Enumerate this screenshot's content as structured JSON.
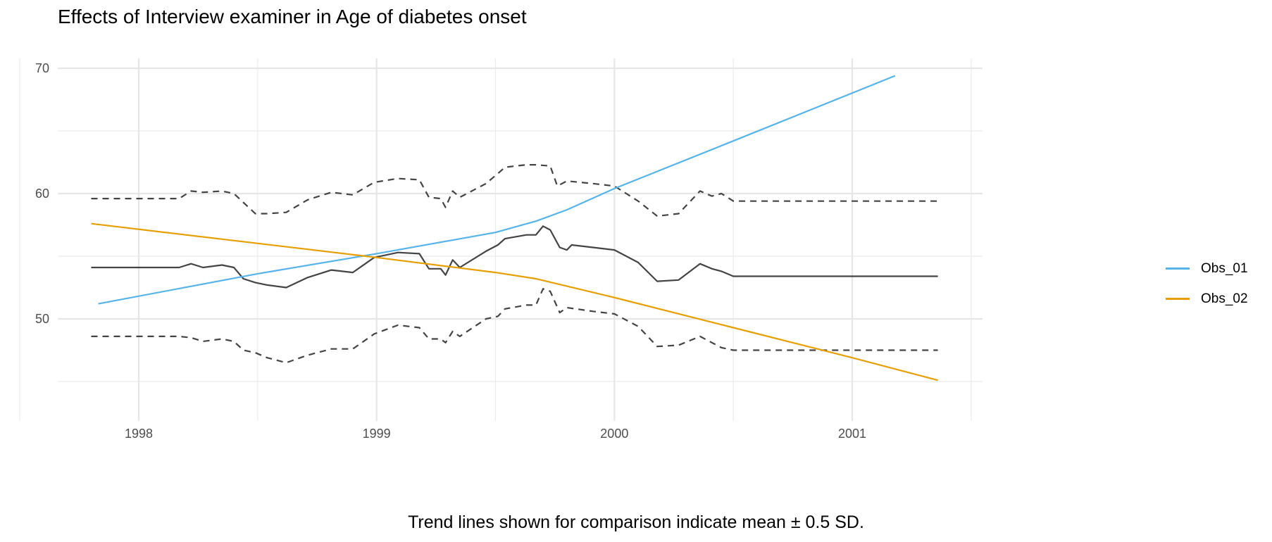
{
  "chart_data": {
    "type": "line",
    "title": "Effects of Interview examiner in Age of diabetes onset",
    "caption": "Trend lines shown for comparison indicate mean ± 0.5 SD.",
    "xlabel": "",
    "ylabel": "",
    "xlim": [
      1997.62,
      2001.55
    ],
    "ylim": [
      42.6,
      71.1
    ],
    "x_ticks": [
      1998,
      1999,
      2000,
      2001
    ],
    "x_tick_labels": [
      "1998",
      "1999",
      "2000",
      "2001"
    ],
    "y_ticks": [
      50,
      60,
      70
    ],
    "y_tick_labels": [
      "50",
      "60",
      "70"
    ],
    "grid": true,
    "legend_position": "right",
    "legend": [
      {
        "name": "Obs_01",
        "color": "#56B4E9"
      },
      {
        "name": "Obs_02",
        "color": "#E69F00"
      }
    ],
    "series": [
      {
        "name": "Obs_01",
        "color": "#56B4E9",
        "style": "solid",
        "x": [
          1997.83,
          1998.5,
          1999.0,
          1999.5,
          1999.67,
          1999.8,
          2000.0,
          2000.5,
          2001.18
        ],
        "y": [
          51.2,
          53.6,
          55.2,
          56.9,
          57.8,
          58.7,
          60.4,
          64.2,
          69.4
        ]
      },
      {
        "name": "Obs_02",
        "color": "#E69F00",
        "style": "solid",
        "x": [
          1997.8,
          1999.0,
          1999.5,
          1999.67,
          2000.0,
          2000.5,
          2001.0,
          2001.36
        ],
        "y": [
          57.6,
          54.9,
          53.7,
          53.2,
          51.7,
          49.3,
          46.9,
          45.1
        ]
      },
      {
        "name": "mean",
        "color": "#444444",
        "style": "solid",
        "x": [
          1997.8,
          1998.17,
          1998.22,
          1998.27,
          1998.35,
          1998.4,
          1998.44,
          1998.49,
          1998.54,
          1998.62,
          1998.71,
          1998.81,
          1998.9,
          1998.99,
          1999.09,
          1999.18,
          1999.22,
          1999.27,
          1999.29,
          1999.32,
          1999.35,
          1999.46,
          1999.51,
          1999.54,
          1999.63,
          1999.67,
          1999.7,
          1999.73,
          1999.77,
          1999.8,
          1999.82,
          1999.91,
          2000.0,
          2000.1,
          2000.18,
          2000.27,
          2000.36,
          2000.41,
          2000.45,
          2000.5,
          2001.36
        ],
        "y": [
          54.1,
          54.1,
          54.4,
          54.1,
          54.3,
          54.1,
          53.2,
          52.9,
          52.7,
          52.5,
          53.3,
          53.9,
          53.7,
          54.9,
          55.3,
          55.2,
          54.0,
          54.0,
          53.5,
          54.7,
          54.1,
          55.4,
          55.9,
          56.4,
          56.7,
          56.7,
          57.4,
          57.1,
          55.7,
          55.5,
          55.9,
          55.7,
          55.5,
          54.5,
          53.0,
          53.1,
          54.4,
          54.0,
          53.8,
          53.4,
          53.4
        ]
      },
      {
        "name": "mean + 0.5 SD",
        "color": "#444444",
        "style": "dashed",
        "x": [
          1997.8,
          1998.17,
          1998.22,
          1998.27,
          1998.35,
          1998.4,
          1998.49,
          1998.54,
          1998.62,
          1998.71,
          1998.81,
          1998.9,
          1998.99,
          1999.09,
          1999.18,
          1999.22,
          1999.27,
          1999.29,
          1999.32,
          1999.35,
          1999.46,
          1999.51,
          1999.54,
          1999.63,
          1999.67,
          1999.73,
          1999.76,
          1999.8,
          1999.91,
          2000.0,
          2000.1,
          2000.18,
          2000.27,
          2000.36,
          2000.41,
          2000.45,
          2000.5,
          2001.36
        ],
        "y": [
          59.6,
          59.6,
          60.2,
          60.1,
          60.2,
          60.0,
          58.4,
          58.4,
          58.5,
          59.5,
          60.1,
          59.9,
          60.9,
          61.2,
          61.1,
          59.7,
          59.6,
          58.9,
          60.2,
          59.7,
          60.8,
          61.6,
          62.1,
          62.3,
          62.3,
          62.2,
          60.6,
          61.0,
          60.8,
          60.6,
          59.4,
          58.2,
          58.4,
          60.2,
          59.8,
          60.0,
          59.4,
          59.4
        ]
      },
      {
        "name": "mean - 0.5 SD",
        "color": "#444444",
        "style": "dashed",
        "x": [
          1997.8,
          1998.17,
          1998.22,
          1998.27,
          1998.35,
          1998.4,
          1998.44,
          1998.49,
          1998.54,
          1998.62,
          1998.71,
          1998.81,
          1998.9,
          1998.99,
          1999.09,
          1999.18,
          1999.22,
          1999.27,
          1999.29,
          1999.32,
          1999.35,
          1999.46,
          1999.51,
          1999.54,
          1999.63,
          1999.67,
          1999.7,
          1999.73,
          1999.77,
          1999.8,
          1999.91,
          2000.0,
          2000.1,
          2000.18,
          2000.27,
          2000.36,
          2000.41,
          2000.45,
          2000.5,
          2001.36
        ],
        "y": [
          48.6,
          48.6,
          48.5,
          48.2,
          48.4,
          48.2,
          47.5,
          47.3,
          46.9,
          46.5,
          47.1,
          47.6,
          47.6,
          48.8,
          49.5,
          49.3,
          48.4,
          48.4,
          48.1,
          49.0,
          48.6,
          50.0,
          50.2,
          50.8,
          51.1,
          51.1,
          52.4,
          52.2,
          50.5,
          50.9,
          50.6,
          50.4,
          49.4,
          47.8,
          47.9,
          48.6,
          48.1,
          47.7,
          47.5,
          47.5
        ]
      }
    ]
  }
}
